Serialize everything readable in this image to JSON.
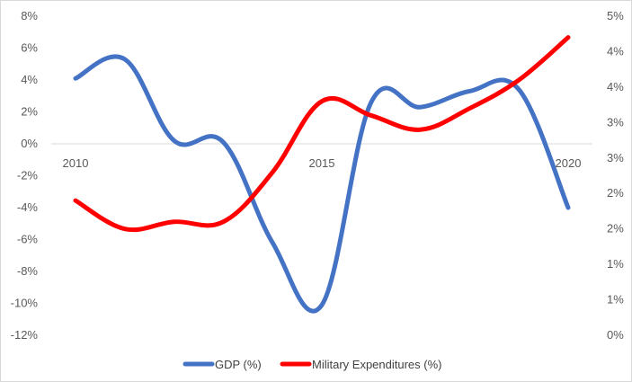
{
  "chart_data": {
    "type": "line",
    "title": "",
    "x": [
      2010,
      2011,
      2012,
      2013,
      2014,
      2015,
      2016,
      2017,
      2018,
      2019,
      2020
    ],
    "x_tick_labels": [
      "2010",
      "2015",
      "2020"
    ],
    "xlim": [
      2010,
      2020
    ],
    "y_left": {
      "label": "",
      "ylim": [
        -12,
        8
      ],
      "ticks": [
        8,
        6,
        4,
        2,
        0,
        -2,
        -4,
        -6,
        -8,
        -10,
        -12
      ],
      "tick_labels": [
        "8%",
        "6%",
        "4%",
        "2%",
        "0%",
        "-2%",
        "-4%",
        "-6%",
        "-8%",
        "-10%",
        "-12%"
      ]
    },
    "y_right": {
      "label": "",
      "ylim": [
        0,
        4.5
      ],
      "ticks": [
        4.5,
        4.0,
        3.5,
        3.0,
        2.5,
        2.0,
        1.5,
        1.0,
        0.5,
        0.0
      ],
      "tick_labels": [
        "5%",
        "4%",
        "4%",
        "3%",
        "3%",
        "2%",
        "2%",
        "1%",
        "1%",
        "0%"
      ]
    },
    "grid": false,
    "legend_position": "bottom",
    "series": [
      {
        "name": "GDP (%)",
        "axis": "left",
        "color": "#4472c4",
        "values": [
          4.1,
          5.3,
          0.2,
          0.1,
          -6.2,
          -10.1,
          2.6,
          2.3,
          3.3,
          3.4,
          -4.0
        ]
      },
      {
        "name": "Military Expenditures (%)",
        "axis": "right",
        "color": "#ff0000",
        "values": [
          1.9,
          1.5,
          1.6,
          1.6,
          2.3,
          3.3,
          3.1,
          2.9,
          3.2,
          3.6,
          4.2
        ]
      }
    ]
  }
}
